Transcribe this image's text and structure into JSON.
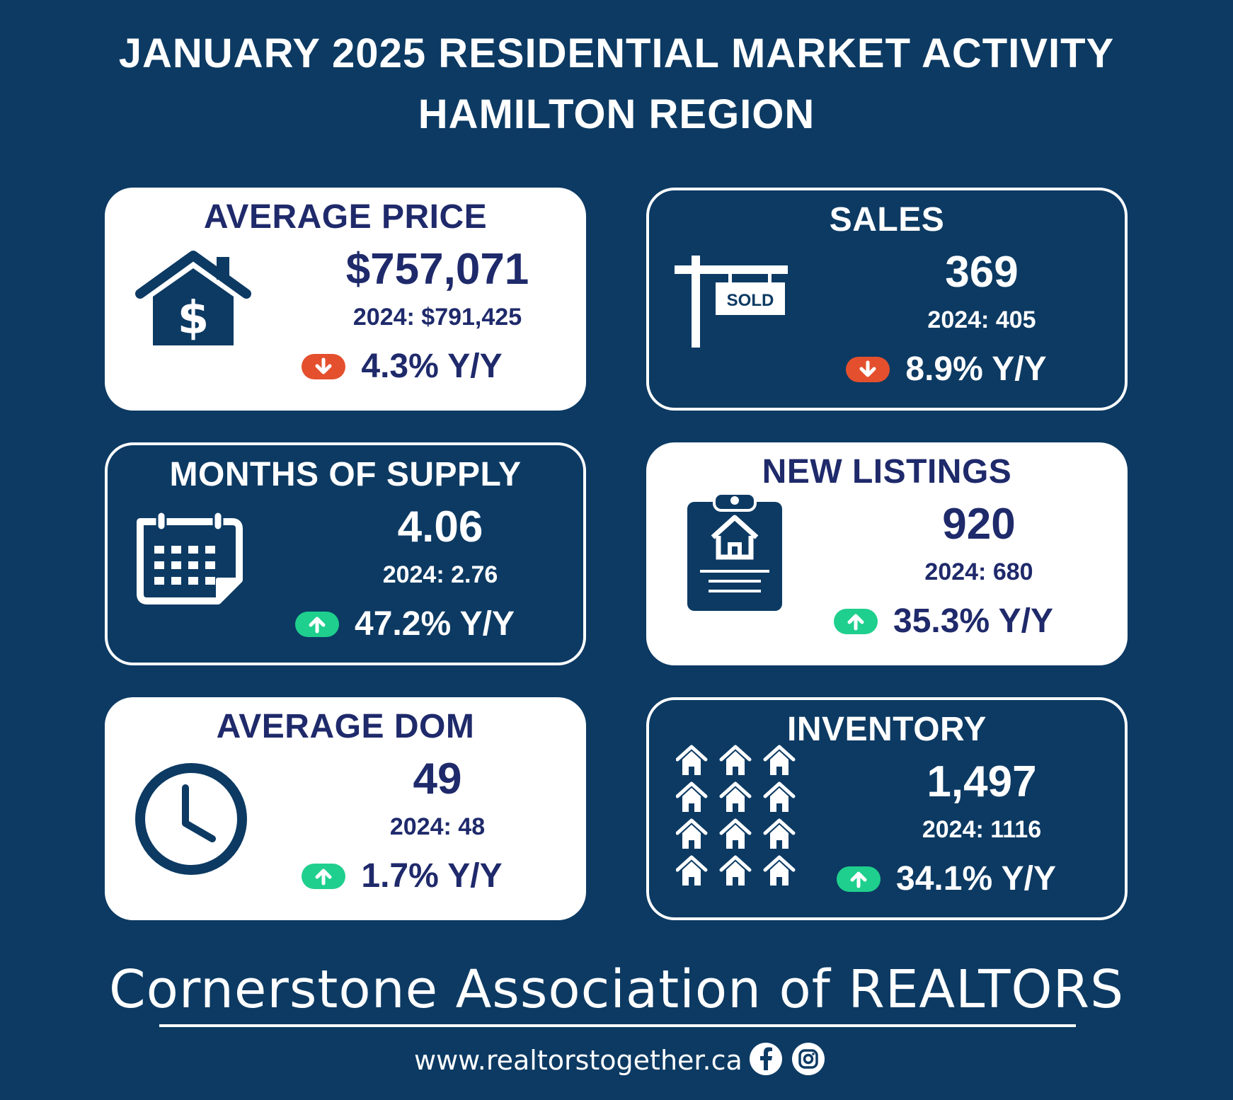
{
  "header": {
    "title_line1": "JANUARY 2025 RESIDENTIAL MARKET ACTIVITY",
    "title_line2": "HAMILTON REGION"
  },
  "colors": {
    "background": "#0c3a63",
    "card_light": "#ffffff",
    "text_navy": "#1f2a6b",
    "down_arrow": "#e4502d",
    "up_arrow": "#1fcf8d"
  },
  "cards": {
    "average_price": {
      "title": "AVERAGE PRICE",
      "value": "$757,071",
      "previous": "2024: $791,425",
      "change": "4.3% Y/Y",
      "direction": "down",
      "icon": "house-dollar-icon"
    },
    "sales": {
      "title": "SALES",
      "value": "369",
      "previous": "2024: 405",
      "change": "8.9% Y/Y",
      "direction": "down",
      "icon": "sold-sign-icon",
      "sign_text": "SOLD"
    },
    "months_of_supply": {
      "title": "MONTHS OF SUPPLY",
      "value": "4.06",
      "previous": "2024: 2.76",
      "change": "47.2% Y/Y",
      "direction": "up",
      "icon": "calendar-icon"
    },
    "new_listings": {
      "title": "NEW LISTINGS",
      "value": "920",
      "previous": "2024: 680",
      "change": "35.3% Y/Y",
      "direction": "up",
      "icon": "clipboard-house-icon"
    },
    "average_dom": {
      "title": "AVERAGE DOM",
      "value": "49",
      "previous": "2024: 48",
      "change": "1.7% Y/Y",
      "direction": "up",
      "icon": "clock-icon"
    },
    "inventory": {
      "title": "INVENTORY",
      "value": "1,497",
      "previous": "2024: 1116",
      "change": "34.1% Y/Y",
      "direction": "up",
      "icon": "houses-grid-icon"
    }
  },
  "footer": {
    "organization": "Cornerstone Association of REALTORS",
    "website": "www.realtorstogether.ca",
    "social_icons": [
      "facebook-icon",
      "instagram-icon"
    ]
  }
}
